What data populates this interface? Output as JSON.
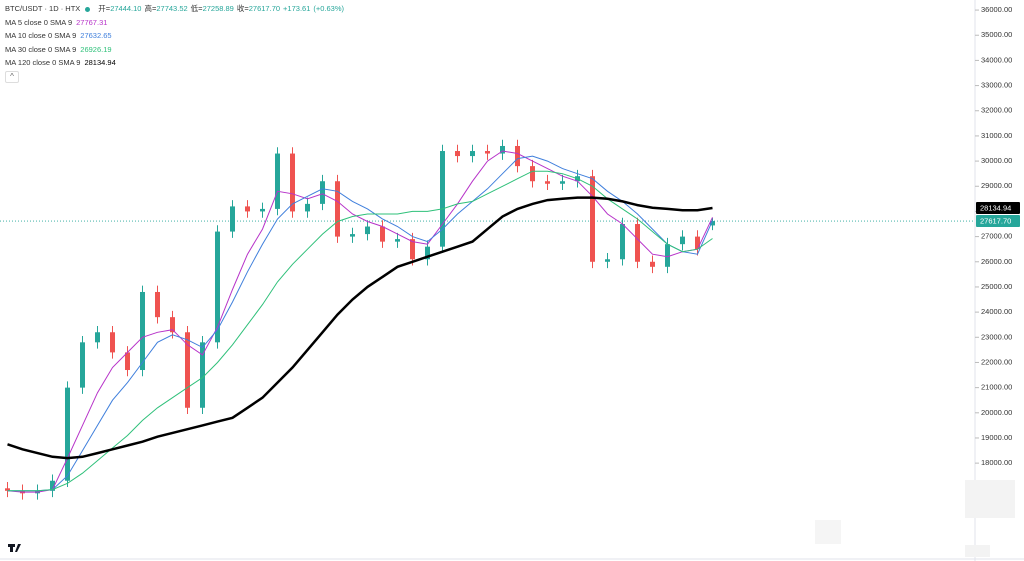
{
  "chart_data": {
    "type": "candlestick",
    "title": "BTC/USDT · 1D · HTX",
    "ohlc_labels": [
      "开=",
      "高=",
      "低=",
      "收="
    ],
    "last_labels": [
      "27444.10",
      "27743.52",
      "27258.89",
      "27617.70"
    ],
    "change": "+173.61",
    "change_pct": "(+0.63%)",
    "up_color": "#26a69a",
    "down_color": "#ef5350",
    "open": [
      17000,
      16900,
      16800,
      16900,
      17300,
      21000,
      22800,
      23200,
      22400,
      21700,
      24800,
      23800,
      23200,
      20200,
      22800,
      27200,
      28200,
      28000,
      28100,
      30300,
      28000,
      28300,
      29200,
      27000,
      27100,
      27400,
      26800,
      26900,
      26100,
      26600,
      30400,
      30200,
      30400,
      30300,
      30600,
      29800,
      29200,
      29100,
      29200,
      29400,
      26000,
      26100,
      27500,
      26000,
      25800,
      26700,
      27000,
      27444.1
    ],
    "high": [
      17250,
      17150,
      17150,
      17550,
      21250,
      23050,
      23450,
      23450,
      22650,
      25050,
      25050,
      24050,
      23450,
      23050,
      27450,
      28450,
      28450,
      28350,
      30550,
      30550,
      28550,
      29450,
      29450,
      27350,
      27650,
      27650,
      27150,
      27150,
      26850,
      30650,
      30650,
      30650,
      30650,
      30850,
      30850,
      30050,
      29450,
      29450,
      29650,
      29650,
      26350,
      27750,
      27750,
      26250,
      26950,
      27250,
      27250,
      27743.52
    ],
    "low": [
      16650,
      16550,
      16550,
      16650,
      17050,
      20750,
      22550,
      22150,
      21450,
      21450,
      23550,
      22950,
      19950,
      19950,
      22550,
      26950,
      27750,
      27750,
      27850,
      27750,
      27750,
      28050,
      26750,
      26750,
      26850,
      26550,
      26550,
      25850,
      25850,
      26350,
      29950,
      29950,
      30050,
      30050,
      29550,
      28950,
      28850,
      28850,
      28950,
      25750,
      25750,
      25850,
      25750,
      25550,
      25550,
      26450,
      26250,
      27258.89
    ],
    "close": [
      16900,
      16800,
      16900,
      17300,
      21000,
      22800,
      23200,
      22400,
      21700,
      24800,
      23800,
      23200,
      20200,
      22800,
      27200,
      28200,
      28000,
      28100,
      30300,
      28000,
      28300,
      29200,
      27000,
      27100,
      27400,
      26800,
      26900,
      26100,
      26600,
      30400,
      30200,
      30400,
      30300,
      30600,
      29800,
      29200,
      29100,
      29200,
      29400,
      26000,
      26100,
      27500,
      26000,
      25800,
      26700,
      27000,
      26500,
      27617.7
    ],
    "overlays": [
      {
        "name": "MA 5 close 0 SMA 9",
        "color": "#b733c9",
        "width": 1,
        "values": [
          16900,
          16850,
          16850,
          16950,
          18200,
          19500,
          20800,
          21800,
          22400,
          23000,
          23200,
          23300,
          22700,
          22300,
          23400,
          24900,
          26300,
          27300,
          28800,
          28700,
          28500,
          28700,
          28400,
          27900,
          27600,
          27400,
          27100,
          26800,
          26700,
          27500,
          28300,
          29200,
          30000,
          30400,
          30300,
          30000,
          29700,
          29400,
          29200,
          28600,
          27900,
          27500,
          26900,
          26300,
          26200,
          26400,
          26500,
          27767.31
        ]
      },
      {
        "name": "MA 10 close 0 SMA 9",
        "color": "#3f7fdc",
        "width": 1,
        "values": [
          16900,
          16900,
          16900,
          16950,
          17500,
          18500,
          19500,
          20500,
          21200,
          22000,
          22800,
          23100,
          22900,
          22600,
          23300,
          24400,
          25600,
          26700,
          27700,
          28300,
          28600,
          28900,
          28800,
          28400,
          28100,
          27700,
          27400,
          27000,
          26800,
          27300,
          27900,
          28400,
          28900,
          29500,
          30100,
          30200,
          30000,
          29700,
          29500,
          29300,
          28800,
          28400,
          27900,
          27300,
          26700,
          26400,
          26300,
          27632.65
        ]
      },
      {
        "name": "MA 30 close 0 SMA 9",
        "color": "#2fc07a",
        "width": 1,
        "values": [
          16900,
          16900,
          16900,
          16950,
          17200,
          17600,
          18100,
          18600,
          19100,
          19700,
          20200,
          20600,
          21000,
          21400,
          22000,
          22700,
          23500,
          24300,
          25200,
          25900,
          26500,
          27100,
          27600,
          27800,
          27900,
          27900,
          27900,
          28000,
          28000,
          28100,
          28300,
          28400,
          28700,
          29000,
          29300,
          29600,
          29600,
          29500,
          29300,
          29000,
          28500,
          28100,
          27700,
          27200,
          26700,
          26400,
          26500,
          26926.19
        ]
      },
      {
        "name": "MA 120 close 0 SMA 9",
        "color": "#000000",
        "width": 2.5,
        "values": [
          18750,
          18550,
          18400,
          18250,
          18200,
          18250,
          18400,
          18550,
          18700,
          18850,
          19050,
          19200,
          19350,
          19500,
          19650,
          19800,
          20200,
          20600,
          21200,
          21800,
          22500,
          23200,
          23900,
          24500,
          25000,
          25400,
          25800,
          26000,
          26200,
          26400,
          26600,
          26800,
          27300,
          27800,
          28100,
          28300,
          28450,
          28500,
          28550,
          28550,
          28500,
          28400,
          28250,
          28150,
          28100,
          28050,
          28050,
          28134.94
        ]
      }
    ],
    "ylim": [
      14430,
      36400
    ],
    "yticks": [
      {
        "value": 18000,
        "label": "18000.00"
      },
      {
        "value": 19000,
        "label": "19000.00"
      },
      {
        "value": 20000,
        "label": "20000.00"
      },
      {
        "value": 21000,
        "label": "21000.00"
      },
      {
        "value": 22000,
        "label": "22000.00"
      },
      {
        "value": 23000,
        "label": "23000.00"
      },
      {
        "value": 24000,
        "label": "24000.00"
      },
      {
        "value": 25000,
        "label": "25000.00"
      },
      {
        "value": 26000,
        "label": "26000.00"
      },
      {
        "value": 27000,
        "label": "27000.00"
      },
      {
        "value": 28000,
        "label": "28000.00"
      },
      {
        "value": 29000,
        "label": "29000.00"
      },
      {
        "value": 30000,
        "label": "30000.00"
      },
      {
        "value": 31000,
        "label": "31000.00"
      },
      {
        "value": 32000,
        "label": "32000.00"
      },
      {
        "value": 33000,
        "label": "33000.00"
      },
      {
        "value": 34000,
        "label": "34000.00"
      },
      {
        "value": 35000,
        "label": "35000.00"
      },
      {
        "value": 36000,
        "label": "36000.00"
      }
    ],
    "grid": false
  }
}
